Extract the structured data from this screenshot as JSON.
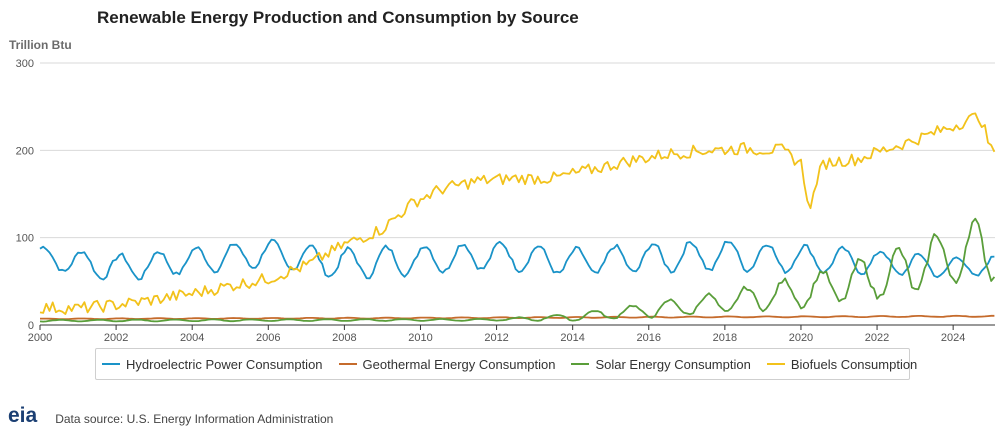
{
  "chart_data": {
    "type": "line",
    "title": "Renewable Energy Production and Consumption by Source",
    "ylabel": "Trillion Btu",
    "ylim": [
      0,
      300
    ],
    "yticks": [
      0,
      100,
      200,
      300
    ],
    "xlim": [
      2000,
      2025.1
    ],
    "xticks": [
      2000,
      2002,
      2004,
      2006,
      2008,
      2010,
      2012,
      2014,
      2016,
      2018,
      2020,
      2022,
      2024
    ],
    "grid": true,
    "legend_position": "bottom",
    "series": [
      {
        "name": "Hydroelectric Power Consumption",
        "color": "#1a93c8",
        "kind": "seasonal",
        "x": [
          2000,
          2002,
          2004,
          2006,
          2008,
          2010,
          2012,
          2014,
          2016,
          2018,
          2020,
          2022,
          2024,
          2025
        ],
        "base": [
          78,
          65,
          74,
          82,
          70,
          75,
          80,
          72,
          77,
          80,
          76,
          72,
          66,
          68
        ],
        "amp": [
          12,
          15,
          14,
          15,
          17,
          16,
          15,
          15,
          16,
          17,
          15,
          13,
          12,
          11
        ]
      },
      {
        "name": "Geothermal Energy Consumption",
        "color": "#c56b2c",
        "kind": "seasonal",
        "x": [
          2000,
          2010,
          2016,
          2025
        ],
        "base": [
          7,
          8,
          9,
          10
        ],
        "amp": [
          0.4,
          0.5,
          0.5,
          0.6
        ]
      },
      {
        "name": "Solar Energy Consumption",
        "color": "#5a9e3a",
        "kind": "seasonal",
        "x": [
          2000,
          2012,
          2014,
          2016,
          2018,
          2020,
          2022,
          2023,
          2024,
          2025
        ],
        "base": [
          5,
          6,
          9,
          17,
          26,
          38,
          55,
          65,
          80,
          88
        ],
        "amp": [
          1,
          1,
          4,
          8,
          12,
          17,
          24,
          28,
          33,
          35
        ]
      },
      {
        "name": "Biofuels Consumption",
        "color": "#f2c21b",
        "kind": "trend",
        "x": [
          2000,
          2001,
          2002,
          2003,
          2004,
          2005,
          2006,
          2007,
          2008,
          2009,
          2009.8,
          2010.5,
          2011.5,
          2012.5,
          2013.5,
          2014.5,
          2015.5,
          2016.5,
          2017.5,
          2018.5,
          2019.5,
          2020.0,
          2020.25,
          2020.4,
          2020.6,
          2021,
          2021.5,
          2022,
          2023,
          2024,
          2024.7,
          2025
        ],
        "y": [
          20,
          19,
          23,
          29,
          36,
          45,
          53,
          68,
          92,
          110,
          140,
          155,
          165,
          168,
          168,
          178,
          188,
          196,
          200,
          202,
          200,
          185,
          130,
          165,
          185,
          188,
          190,
          198,
          212,
          228,
          240,
          200
        ],
        "noise": 7
      }
    ]
  },
  "footer": {
    "logo_text": "eia",
    "source": "Data source: U.S. Energy Information Administration"
  }
}
